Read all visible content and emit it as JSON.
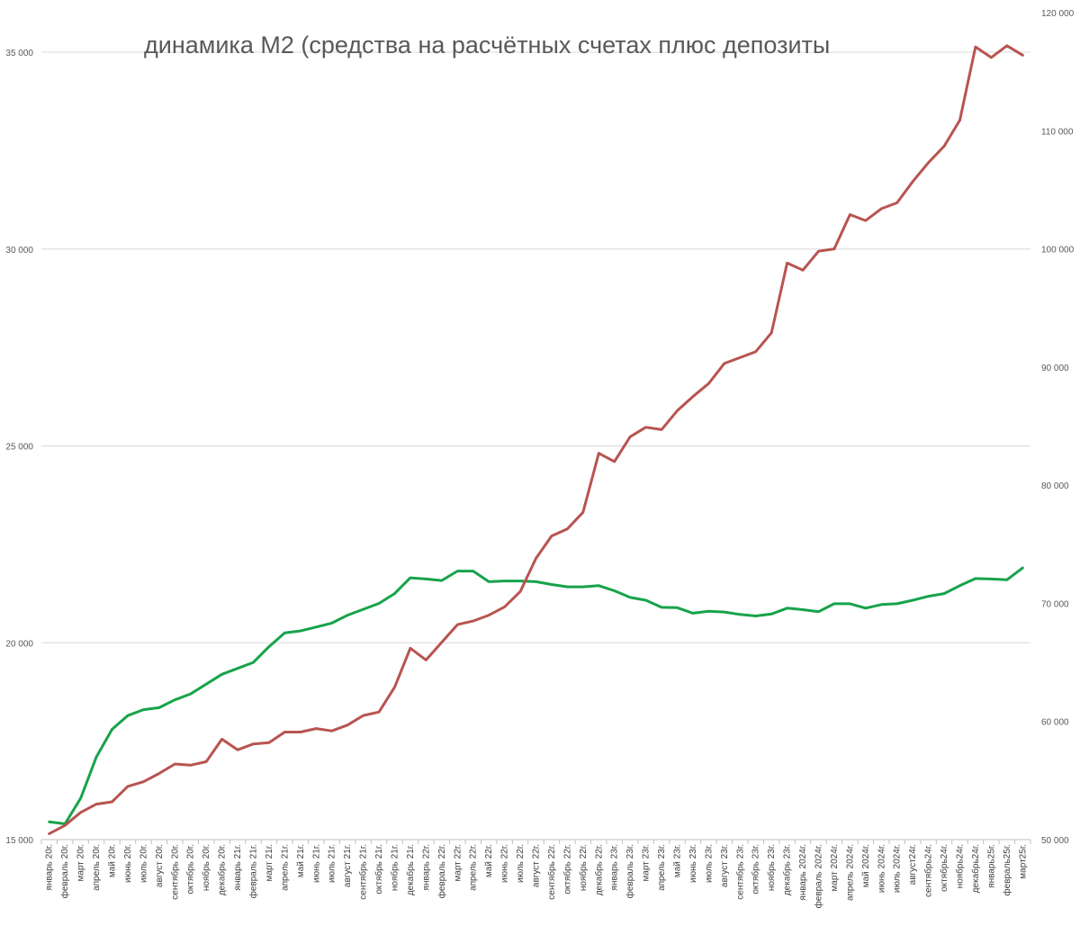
{
  "chart_data": {
    "type": "line",
    "title": "динамика М2 (средства на расчётных счетах плюс депозиты",
    "grid": true,
    "legend": "none",
    "categories": [
      "январь 20г.",
      "февраль 20г.",
      "март 20г.",
      "апрель 20г.",
      "май 20г.",
      "июнь 20г.",
      "июль 20г.",
      "август 20г.",
      "сентябрь 20г.",
      "октябрь 20г.",
      "ноябрь 20г.",
      "декабрь 20г.",
      "январь 21г.",
      "февраль 21г.",
      "март 21г.",
      "апрель 21г.",
      "май 21г.",
      "июнь 21г.",
      "июль 21г.",
      "август 21г.",
      "сентябрь 21г.",
      "октябрь 21г.",
      "ноябрь 21г.",
      "декабрь 21г.",
      "январь 22г.",
      "февраль 22г.",
      "март 22г.",
      "апрель 22г.",
      "май 22г.",
      "июнь 22г.",
      "июль 22г.",
      "август 22г.",
      "сентябрь 22г.",
      "октябрь 22г.",
      "ноябрь 22г.",
      "декабрь 22г.",
      "январь 23г.",
      "февраль 23г.",
      "март 23г.",
      "апрель 23г.",
      "май 23г.",
      "июнь 23г.",
      "июль 23г.",
      "август 23г.",
      "сентябрь 23г.",
      "октябрь 23г.",
      "ноябрь 23г.",
      "декабрь 23г.",
      "январь 2024г.",
      "февраль 2024г.",
      "март 2024г.",
      "апрель 2024г.",
      "май 2024г.",
      "июнь 2024г.",
      "июль 2024г.",
      "август24г.",
      "сентябрь24г.",
      "октябрь24г.",
      "ноябрь24г.",
      "декабрь24г.",
      "январь25г.",
      "февраль25г.",
      "март25г."
    ],
    "y_left": {
      "min": 15000,
      "max": 35000,
      "ticks": [
        15000,
        20000,
        25000,
        30000,
        35000
      ],
      "tick_labels": [
        "15 000",
        "20 000",
        "25 000",
        "30 000",
        "35 000"
      ]
    },
    "y_right": {
      "min": 50000,
      "max": 120000,
      "ticks": [
        50000,
        60000,
        70000,
        80000,
        90000,
        100000,
        110000,
        120000
      ],
      "tick_labels": [
        "50 000",
        "60 000",
        "70 000",
        "80 000",
        "90 000",
        "100 000",
        "110 000",
        "120 000"
      ]
    },
    "series": [
      {
        "name": "green",
        "axis": "left",
        "color": "#17a34a",
        "values": [
          15450,
          15400,
          16050,
          17100,
          17800,
          18150,
          18300,
          18350,
          18550,
          18700,
          18950,
          19200,
          19350,
          19500,
          19900,
          20250,
          20300,
          20400,
          20500,
          20700,
          20850,
          21000,
          21250,
          21650,
          21620,
          21580,
          21820,
          21820,
          21550,
          21570,
          21570,
          21550,
          21480,
          21420,
          21420,
          21450,
          21320,
          21150,
          21080,
          20900,
          20890,
          20750,
          20800,
          20780,
          20720,
          20680,
          20730,
          20880,
          20840,
          20790,
          20990,
          20990,
          20880,
          20970,
          20990,
          21080,
          21180,
          21250,
          21450,
          21630,
          21620,
          21600,
          21900
        ]
      },
      {
        "name": "red",
        "axis": "right",
        "color": "#b85450",
        "values": [
          50500,
          51200,
          52300,
          53000,
          53200,
          54500,
          54900,
          55600,
          56400,
          56300,
          56600,
          58500,
          57600,
          58100,
          58200,
          59100,
          59100,
          59400,
          59200,
          59700,
          60500,
          60800,
          62900,
          66200,
          65200,
          66700,
          68200,
          68500,
          69000,
          69700,
          71000,
          73800,
          75700,
          76300,
          77700,
          82700,
          82000,
          84100,
          84900,
          84700,
          86300,
          87500,
          88600,
          90300,
          90800,
          91300,
          92900,
          98800,
          98200,
          99800,
          100000,
          102900,
          102400,
          103400,
          103900,
          105700,
          107300,
          108700,
          110900,
          117100,
          116200,
          117200,
          116400
        ]
      }
    ]
  }
}
